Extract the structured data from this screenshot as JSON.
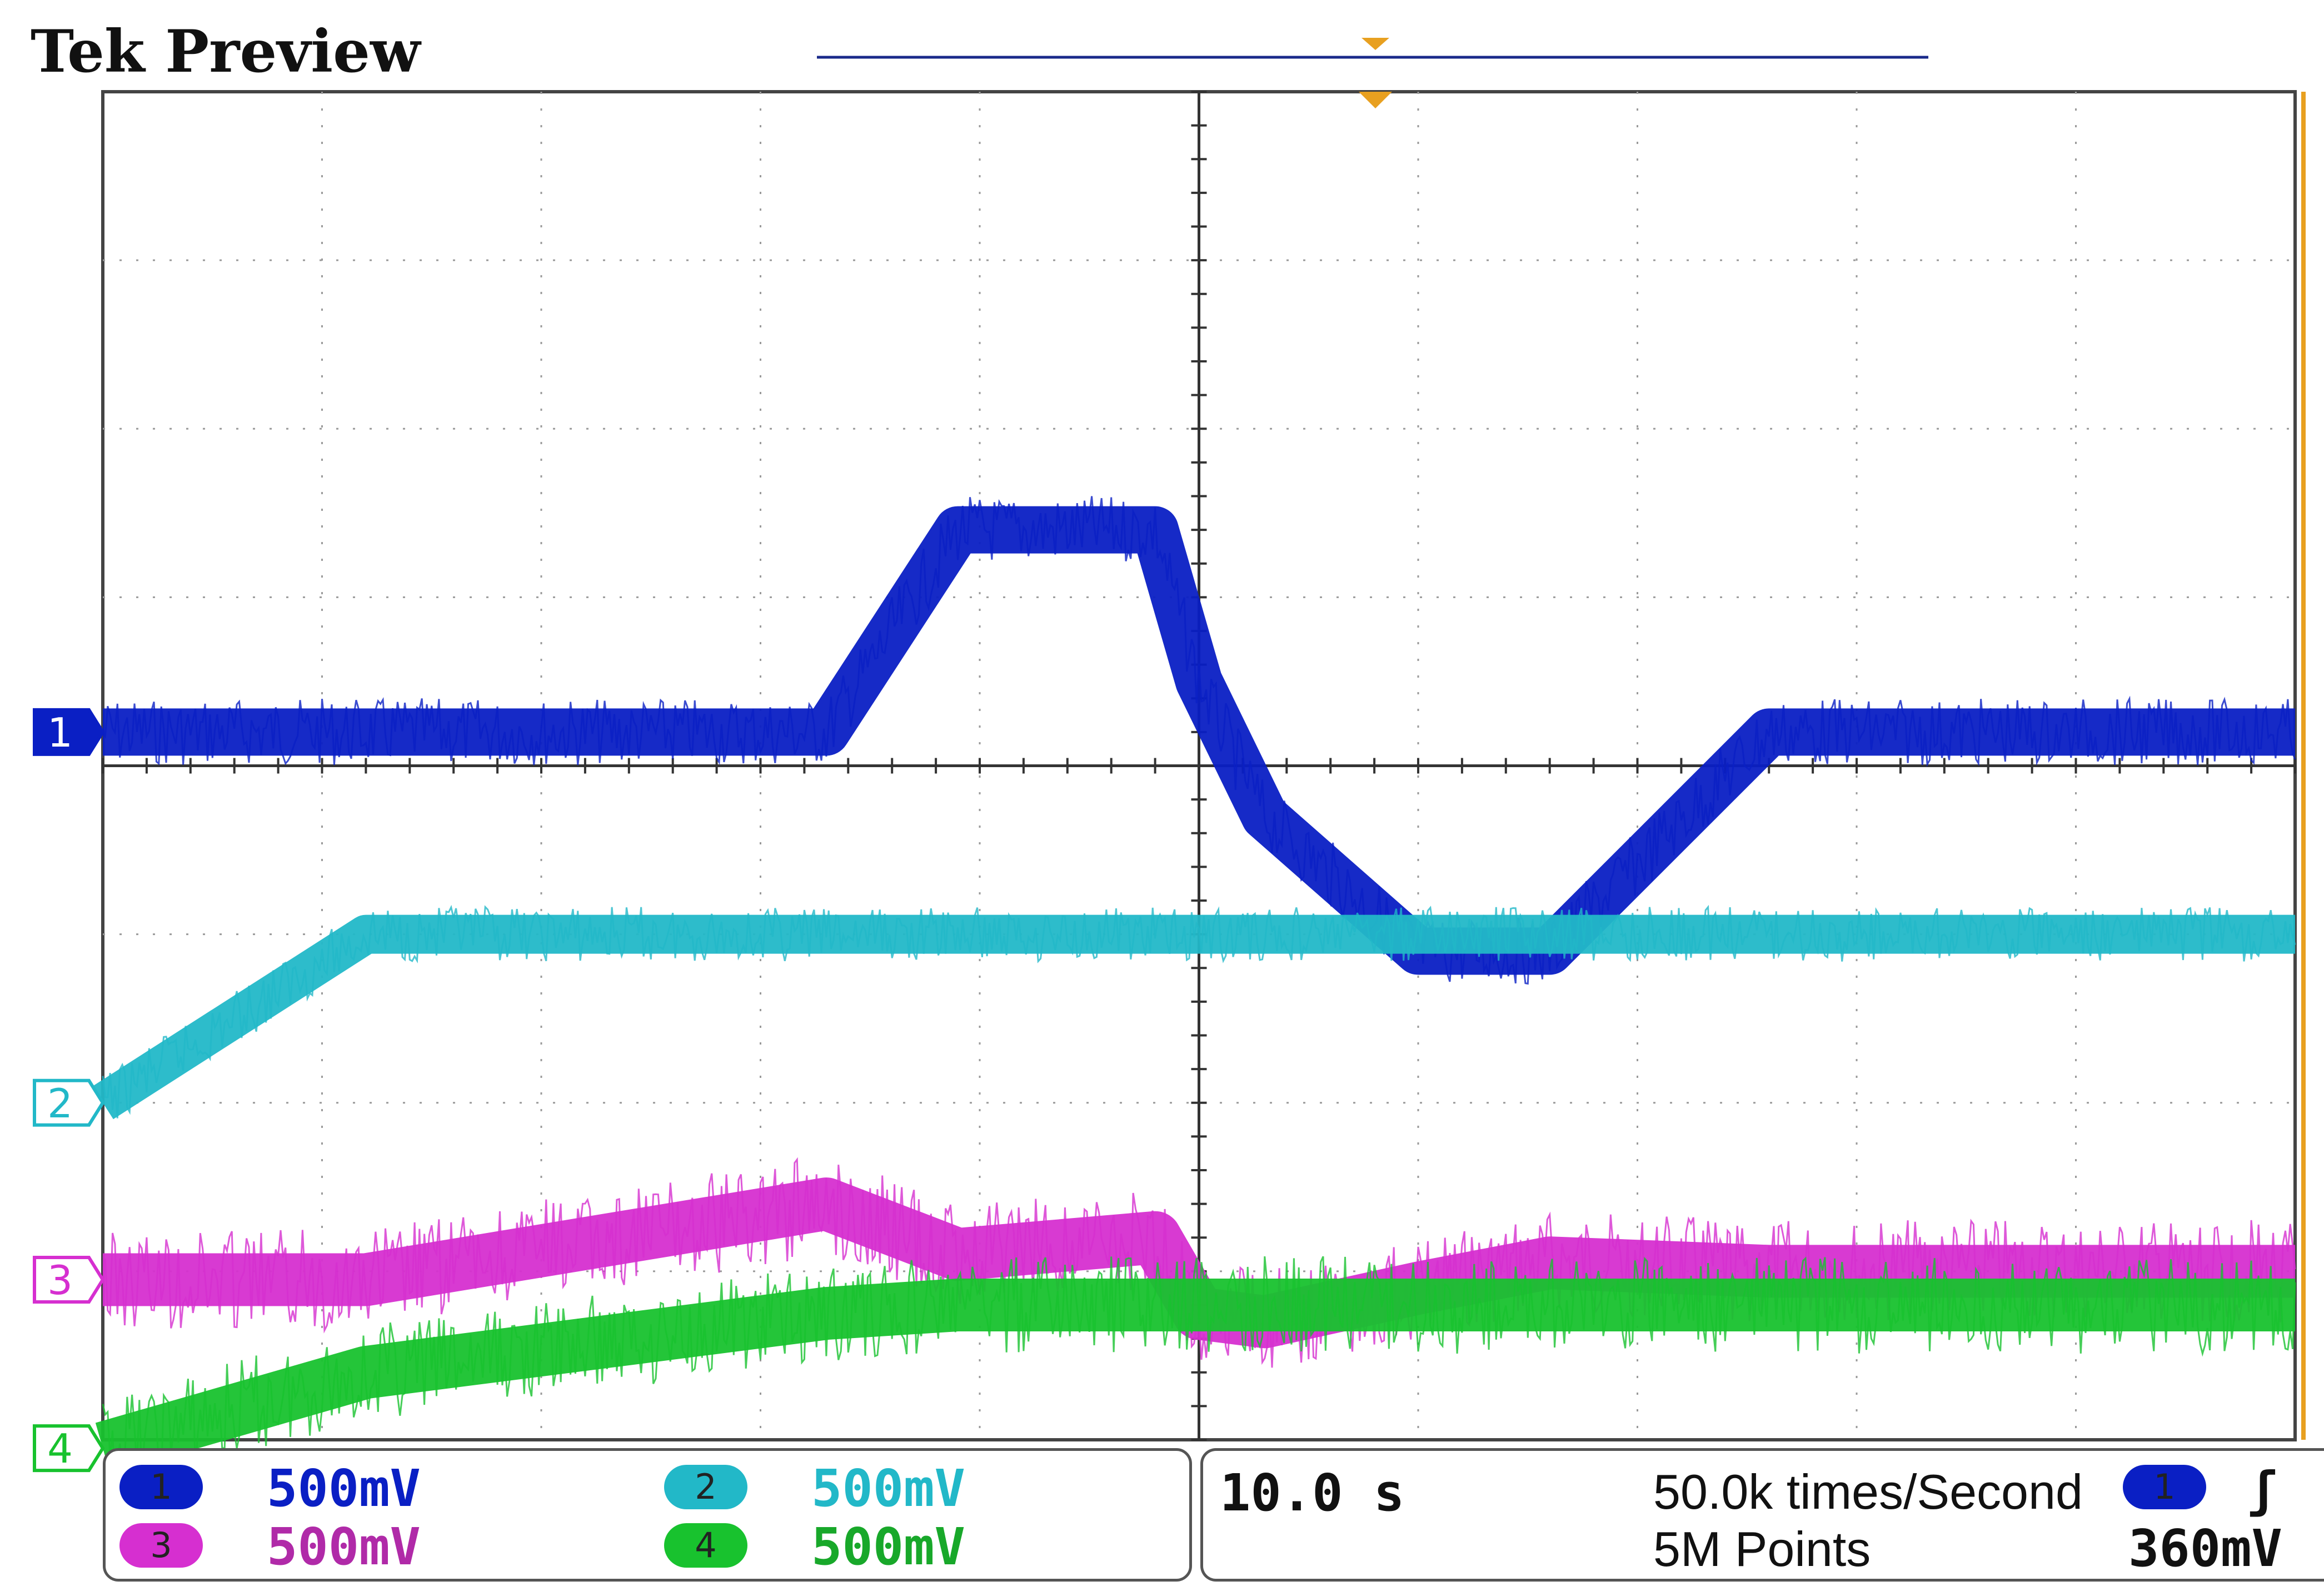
{
  "header": {
    "title": "Tek Preview"
  },
  "colors": {
    "ch1": "#0a1fc4",
    "ch2": "#22b8c8",
    "ch3": "#d62fd0",
    "ch4": "#18c22e",
    "grid": "#9a9a9a",
    "trigger": "#e8a020"
  },
  "chart_data": {
    "type": "line",
    "title": "Tek Preview",
    "xlabel": "",
    "ylabel": "",
    "grid": true,
    "divisions": {
      "x": 10,
      "y": 8
    },
    "x": [
      0,
      1.2,
      3.3,
      3.9,
      4.8,
      5.0,
      5.3,
      6.0,
      6.6,
      7.6,
      10
    ],
    "series": [
      {
        "name": "1",
        "scale": "500mV",
        "values": [
          4.2,
          4.2,
          4.2,
          5.4,
          5.4,
          4.5,
          3.7,
          2.9,
          2.9,
          4.2,
          4.2
        ]
      },
      {
        "name": "2",
        "scale": "500mV",
        "values": [
          2.0,
          3.0,
          3.0,
          3.0,
          3.0,
          3.0,
          3.0,
          3.0,
          3.0,
          3.0,
          3.0
        ]
      },
      {
        "name": "3",
        "scale": "500mV",
        "values": [
          0.95,
          0.95,
          1.4,
          1.1,
          1.2,
          0.75,
          0.7,
          0.9,
          1.05,
          1.0,
          1.0
        ]
      },
      {
        "name": "4",
        "scale": "500mV",
        "values": [
          -0.05,
          0.4,
          0.75,
          0.8,
          0.8,
          0.8,
          0.8,
          0.8,
          0.8,
          0.8,
          0.8
        ]
      }
    ],
    "timebase": "10.0 s",
    "sample_rate": "50.0k times/Second",
    "record_length": "5M Points",
    "trigger": {
      "source": "1",
      "slope": "rising",
      "level": "360mV"
    }
  },
  "readout": {
    "ch1_label": "1",
    "ch1_scale": "500mV",
    "ch2_label": "2",
    "ch2_scale": "500mV",
    "ch3_label": "3",
    "ch3_scale": "500mV",
    "ch4_label": "4",
    "ch4_scale": "500mV",
    "timebase": "10.0 s",
    "sample_rate": "50.0k times/Second",
    "record_length": "5M Points",
    "trigger_source": "1",
    "trigger_slope_symbol": "ʃ",
    "trigger_level": "360mV"
  },
  "markers": {
    "m1": "1",
    "m2": "2",
    "m3": "3",
    "m4": "4"
  }
}
